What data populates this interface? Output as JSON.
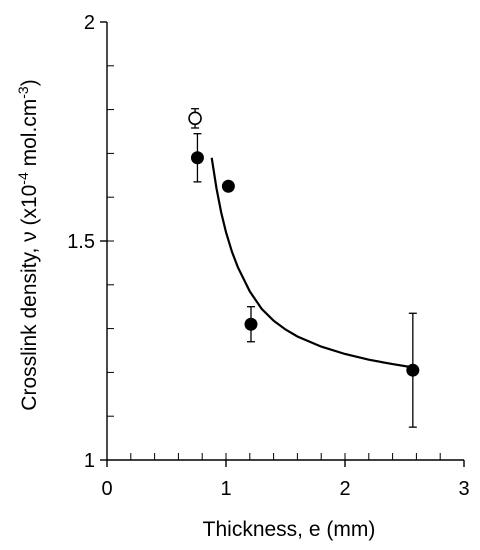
{
  "chart_data": {
    "type": "scatter",
    "xlabel": "Thickness, e (mm)",
    "ylabel": {
      "prefix": "Crosslink density, ν (x10",
      "exp1": "-4",
      "middle": " mol.cm",
      "exp2": "-3",
      "suffix": ")"
    },
    "xlim": [
      0,
      3
    ],
    "ylim": [
      1,
      2
    ],
    "x_ticks": [
      "0",
      "1",
      "2",
      "3"
    ],
    "y_ticks": [
      "1",
      "1.5",
      "2"
    ],
    "x_tick_values": [
      0,
      1,
      2,
      3
    ],
    "y_tick_values": [
      1,
      1.5,
      2
    ],
    "x_minor_step": 0.2,
    "y_minor_step": 0.1,
    "grid": false,
    "legend": "none",
    "series": [
      {
        "marker": "filled-circle",
        "color": "#000000",
        "points": [
          {
            "x": 0.76,
            "y": 1.69,
            "err": 0.055
          },
          {
            "x": 1.02,
            "y": 1.625,
            "err": 0
          },
          {
            "x": 1.21,
            "y": 1.31,
            "err": 0.04
          },
          {
            "x": 2.57,
            "y": 1.205,
            "err": 0.13
          }
        ]
      },
      {
        "marker": "open-circle",
        "color": "#000000",
        "points": [
          {
            "x": 0.74,
            "y": 1.78,
            "err": 0.022
          }
        ]
      }
    ],
    "fit_curve": {
      "color": "#000000",
      "points": [
        [
          0.88,
          1.69
        ],
        [
          0.92,
          1.62
        ],
        [
          0.96,
          1.565
        ],
        [
          1.0,
          1.52
        ],
        [
          1.05,
          1.475
        ],
        [
          1.1,
          1.44
        ],
        [
          1.2,
          1.385
        ],
        [
          1.3,
          1.345
        ],
        [
          1.4,
          1.318
        ],
        [
          1.5,
          1.298
        ],
        [
          1.6,
          1.282
        ],
        [
          1.8,
          1.259
        ],
        [
          2.0,
          1.242
        ],
        [
          2.2,
          1.229
        ],
        [
          2.4,
          1.219
        ],
        [
          2.6,
          1.21
        ]
      ]
    }
  }
}
